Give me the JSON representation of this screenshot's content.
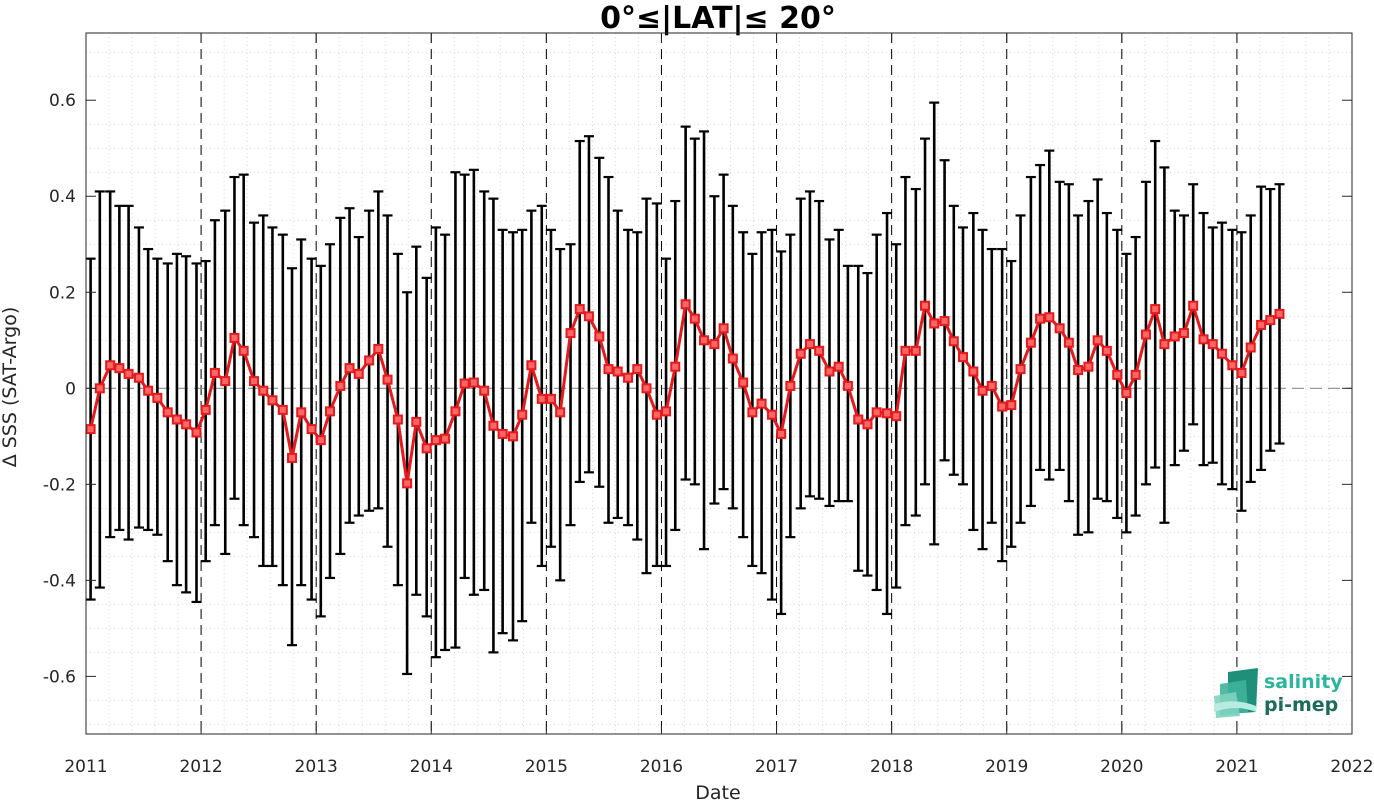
{
  "chart_data": {
    "type": "line",
    "title": "0°≤|LAT|≤ 20°",
    "xlabel": "Date",
    "ylabel": "Δ SSS (SAT-Argo)",
    "xlim": [
      2011,
      2022
    ],
    "ylim": [
      -0.72,
      0.74
    ],
    "x_ticks": [
      2011,
      2012,
      2013,
      2014,
      2015,
      2016,
      2017,
      2018,
      2019,
      2020,
      2021,
      2022
    ],
    "y_ticks": [
      -0.6,
      -0.4,
      -0.2,
      0,
      0.2,
      0.4,
      0.6
    ],
    "y_tick_labels": [
      "-0.6",
      "-0.4",
      "-0.2",
      "0",
      "0.2",
      "0.4",
      "0.6"
    ],
    "grid": "minor dotted",
    "year_markers": "dashed vertical lines at each year",
    "zero_line": "dashed grey horizontal line at 0",
    "colors": {
      "series": "#e41a1c",
      "error_bars": "#000000",
      "background": "#ffffff"
    },
    "series": [
      {
        "x": [
          2011.04,
          2011.12,
          2011.21,
          2011.29,
          2011.37,
          2011.46,
          2011.54,
          2011.62,
          2011.71,
          2011.79,
          2011.87,
          2011.96,
          2012.04,
          2012.12,
          2012.21,
          2012.29,
          2012.37,
          2012.46,
          2012.54,
          2012.62,
          2012.71,
          2012.79,
          2012.87,
          2012.96,
          2013.04,
          2013.12,
          2013.21,
          2013.29,
          2013.37,
          2013.46,
          2013.54,
          2013.62,
          2013.71,
          2013.79,
          2013.87,
          2013.96,
          2014.04,
          2014.12,
          2014.21,
          2014.29,
          2014.37,
          2014.46,
          2014.54,
          2014.62,
          2014.71,
          2014.79,
          2014.87,
          2014.96,
          2015.04,
          2015.12,
          2015.21,
          2015.29,
          2015.37,
          2015.46,
          2015.54,
          2015.62,
          2015.71,
          2015.79,
          2015.87,
          2015.96,
          2016.04,
          2016.12,
          2016.21,
          2016.29,
          2016.37,
          2016.46,
          2016.54,
          2016.62,
          2016.71,
          2016.79,
          2016.87,
          2016.96,
          2017.04,
          2017.12,
          2017.21,
          2017.29,
          2017.37,
          2017.46,
          2017.54,
          2017.62,
          2017.71,
          2017.79,
          2017.87,
          2017.96,
          2018.04,
          2018.12,
          2018.21,
          2018.29,
          2018.37,
          2018.46,
          2018.54,
          2018.62,
          2018.71,
          2018.79,
          2018.87,
          2018.96,
          2019.04,
          2019.12,
          2019.21,
          2019.29,
          2019.37,
          2019.46,
          2019.54,
          2019.62,
          2019.71,
          2019.79,
          2019.87,
          2019.96,
          2020.04,
          2020.12,
          2020.21,
          2020.29,
          2020.37,
          2020.46,
          2020.54,
          2020.62,
          2020.71,
          2020.79,
          2020.87,
          2020.96,
          2021.04,
          2021.12,
          2021.21,
          2021.29,
          2021.37
        ],
        "values": [
          -0.085,
          0.0,
          0.048,
          0.042,
          0.03,
          0.022,
          -0.005,
          -0.02,
          -0.05,
          -0.065,
          -0.075,
          -0.092,
          -0.045,
          0.032,
          0.015,
          0.105,
          0.078,
          0.015,
          -0.005,
          -0.025,
          -0.045,
          -0.145,
          -0.05,
          -0.085,
          -0.108,
          -0.048,
          0.005,
          0.042,
          0.03,
          0.058,
          0.082,
          0.018,
          -0.065,
          -0.198,
          -0.07,
          -0.125,
          -0.108,
          -0.105,
          -0.048,
          0.01,
          0.012,
          -0.005,
          -0.078,
          -0.095,
          -0.1,
          -0.055,
          0.048,
          -0.022,
          -0.022,
          -0.05,
          0.115,
          0.165,
          0.15,
          0.108,
          0.04,
          0.035,
          0.022,
          0.04,
          0.0,
          -0.055,
          -0.048,
          0.045,
          0.175,
          0.145,
          0.1,
          0.092,
          0.125,
          0.062,
          0.012,
          -0.05,
          -0.032,
          -0.055,
          -0.095,
          0.005,
          0.072,
          0.092,
          0.078,
          0.035,
          0.045,
          0.005,
          -0.065,
          -0.075,
          -0.05,
          -0.052,
          -0.058,
          0.078,
          0.078,
          0.172,
          0.135,
          0.14,
          0.098,
          0.065,
          0.035,
          -0.005,
          0.005,
          -0.038,
          -0.035,
          0.04,
          0.095,
          0.145,
          0.148,
          0.125,
          0.095,
          0.038,
          0.045,
          0.1,
          0.078,
          0.028,
          -0.01,
          0.028,
          0.112,
          0.165,
          0.092,
          0.108,
          0.115,
          0.172,
          0.102,
          0.092,
          0.072,
          0.048,
          0.032,
          0.085,
          0.132,
          0.142,
          0.155
        ],
        "upper": [
          0.27,
          0.41,
          0.41,
          0.38,
          0.38,
          0.335,
          0.29,
          0.27,
          0.26,
          0.28,
          0.275,
          0.26,
          0.265,
          0.35,
          0.37,
          0.44,
          0.445,
          0.345,
          0.36,
          0.335,
          0.32,
          0.25,
          0.31,
          0.27,
          0.255,
          0.3,
          0.355,
          0.375,
          0.315,
          0.37,
          0.41,
          0.36,
          0.28,
          0.2,
          0.295,
          0.23,
          0.335,
          0.32,
          0.45,
          0.445,
          0.455,
          0.41,
          0.395,
          0.33,
          0.325,
          0.33,
          0.37,
          0.38,
          0.33,
          0.29,
          0.3,
          0.515,
          0.525,
          0.48,
          0.44,
          0.37,
          0.33,
          0.325,
          0.395,
          0.385,
          0.27,
          0.39,
          0.545,
          0.52,
          0.535,
          0.4,
          0.445,
          0.38,
          0.325,
          0.28,
          0.325,
          0.33,
          0.285,
          0.32,
          0.395,
          0.41,
          0.39,
          0.31,
          0.33,
          0.255,
          0.255,
          0.24,
          0.32,
          0.365,
          0.3,
          0.44,
          0.415,
          0.52,
          0.595,
          0.475,
          0.38,
          0.335,
          0.365,
          0.33,
          0.29,
          0.29,
          0.265,
          0.36,
          0.44,
          0.465,
          0.495,
          0.43,
          0.425,
          0.36,
          0.39,
          0.435,
          0.365,
          0.33,
          0.28,
          0.315,
          0.43,
          0.515,
          0.46,
          0.37,
          0.36,
          0.425,
          0.365,
          0.335,
          0.345,
          0.33,
          0.325,
          0.36,
          0.42,
          0.415,
          0.425
        ],
        "lower": [
          -0.44,
          -0.415,
          -0.31,
          -0.295,
          -0.315,
          -0.29,
          -0.295,
          -0.305,
          -0.36,
          -0.41,
          -0.425,
          -0.445,
          -0.36,
          -0.285,
          -0.345,
          -0.23,
          -0.285,
          -0.31,
          -0.37,
          -0.37,
          -0.41,
          -0.535,
          -0.41,
          -0.44,
          -0.475,
          -0.395,
          -0.345,
          -0.28,
          -0.265,
          -0.255,
          -0.25,
          -0.33,
          -0.41,
          -0.595,
          -0.43,
          -0.475,
          -0.56,
          -0.545,
          -0.54,
          -0.395,
          -0.43,
          -0.42,
          -0.55,
          -0.51,
          -0.525,
          -0.485,
          -0.28,
          -0.37,
          -0.33,
          -0.4,
          -0.285,
          -0.195,
          -0.175,
          -0.205,
          -0.28,
          -0.27,
          -0.285,
          -0.315,
          -0.385,
          -0.37,
          -0.37,
          -0.295,
          -0.19,
          -0.2,
          -0.335,
          -0.24,
          -0.21,
          -0.25,
          -0.31,
          -0.37,
          -0.385,
          -0.44,
          -0.47,
          -0.31,
          -0.25,
          -0.225,
          -0.23,
          -0.245,
          -0.235,
          -0.235,
          -0.38,
          -0.39,
          -0.42,
          -0.47,
          -0.415,
          -0.285,
          -0.265,
          -0.2,
          -0.325,
          -0.15,
          -0.18,
          -0.2,
          -0.295,
          -0.335,
          -0.28,
          -0.36,
          -0.33,
          -0.28,
          -0.245,
          -0.17,
          -0.19,
          -0.17,
          -0.235,
          -0.305,
          -0.3,
          -0.23,
          -0.235,
          -0.27,
          -0.3,
          -0.265,
          -0.2,
          -0.165,
          -0.28,
          -0.16,
          -0.13,
          -0.075,
          -0.16,
          -0.155,
          -0.2,
          -0.21,
          -0.255,
          -0.195,
          -0.17,
          -0.13,
          -0.115
        ]
      }
    ]
  },
  "logo": {
    "line1": "salinity",
    "line2": "pi-mep"
  }
}
